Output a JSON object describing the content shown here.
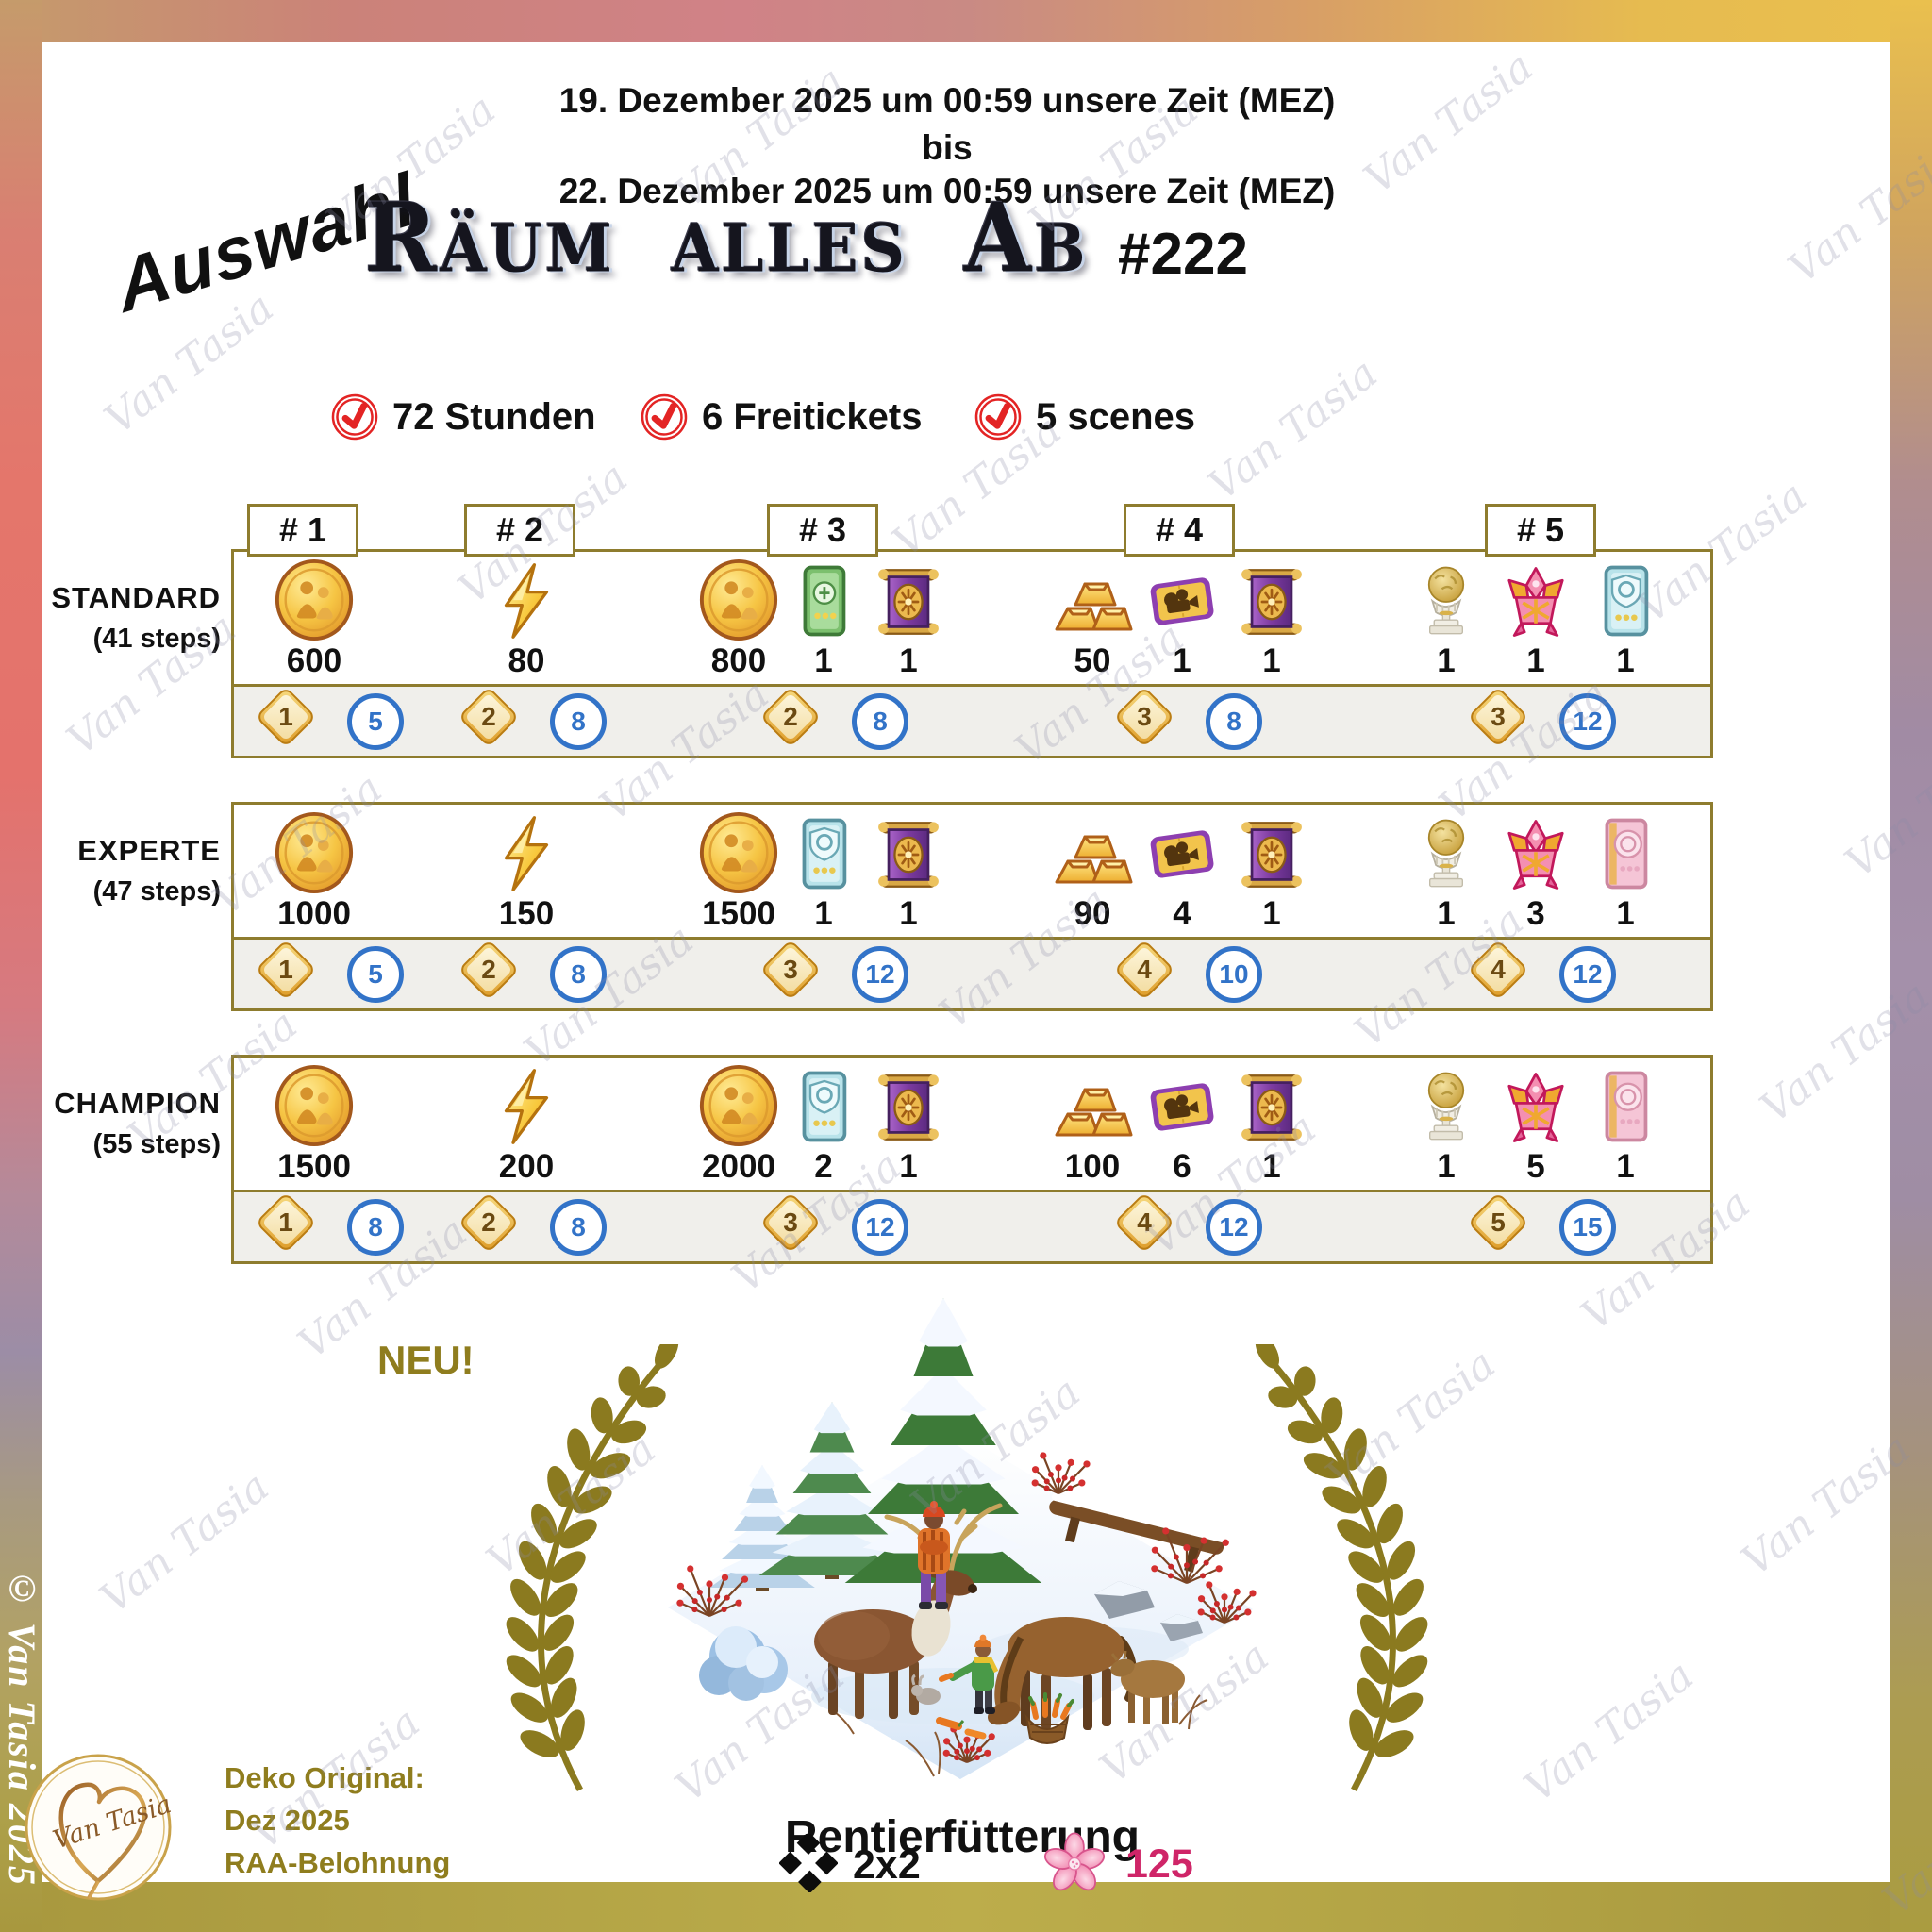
{
  "header": {
    "date_from": "19. Dezember 2025 um 00:59 unsere Zeit (MEZ)",
    "date_connector": "bis",
    "date_to": "22. Dezember 2025 um 00:59 unsere Zeit (MEZ)",
    "selection_label": "Auswahl",
    "title": "Räum alles Ab",
    "event_number": "#222",
    "features": [
      {
        "icon": "red-check-icon",
        "label": "72 Stunden"
      },
      {
        "icon": "red-check-icon",
        "label": "6 Freitickets"
      },
      {
        "icon": "red-check-icon",
        "label": "5 scenes"
      }
    ]
  },
  "milestones": [
    "# 1",
    "# 2",
    "# 3",
    "# 4",
    "# 5"
  ],
  "tiers": [
    {
      "name": "STANDARD",
      "steps": "(41 steps)",
      "rewards": [
        {
          "icon": "coin",
          "qty": "600"
        },
        {
          "icon": "energy",
          "qty": "80"
        },
        {
          "icon": "coin",
          "qty": "800"
        },
        {
          "icon": "green-card",
          "qty": "1"
        },
        {
          "icon": "purple-banner",
          "qty": "1"
        },
        {
          "icon": "gold-bars",
          "qty": "50"
        },
        {
          "icon": "movie-ticket",
          "qty": "1"
        },
        {
          "icon": "purple-banner",
          "qty": "1"
        },
        {
          "icon": "trophy",
          "qty": "1"
        },
        {
          "icon": "pink-ornament",
          "qty": "1"
        },
        {
          "icon": "teal-card",
          "qty": "1"
        }
      ],
      "badges": [
        {
          "scene": "1",
          "count": "5"
        },
        {
          "scene": "2",
          "count": "8"
        },
        {
          "scene": "2",
          "count": "8"
        },
        {
          "scene": "3",
          "count": "8"
        },
        {
          "scene": "3",
          "count": "12"
        }
      ]
    },
    {
      "name": "EXPERTE",
      "steps": "(47 steps)",
      "rewards": [
        {
          "icon": "coin",
          "qty": "1000"
        },
        {
          "icon": "energy",
          "qty": "150"
        },
        {
          "icon": "coin",
          "qty": "1500"
        },
        {
          "icon": "teal-card",
          "qty": "1"
        },
        {
          "icon": "purple-banner",
          "qty": "1"
        },
        {
          "icon": "gold-bars",
          "qty": "90"
        },
        {
          "icon": "movie-ticket",
          "qty": "4"
        },
        {
          "icon": "purple-banner",
          "qty": "1"
        },
        {
          "icon": "trophy",
          "qty": "1"
        },
        {
          "icon": "pink-ornament",
          "qty": "3"
        },
        {
          "icon": "pink-card",
          "qty": "1"
        }
      ],
      "badges": [
        {
          "scene": "1",
          "count": "5"
        },
        {
          "scene": "2",
          "count": "8"
        },
        {
          "scene": "3",
          "count": "12"
        },
        {
          "scene": "4",
          "count": "10"
        },
        {
          "scene": "4",
          "count": "12"
        }
      ]
    },
    {
      "name": "CHAMPION",
      "steps": "(55 steps)",
      "rewards": [
        {
          "icon": "coin",
          "qty": "1500"
        },
        {
          "icon": "energy",
          "qty": "200"
        },
        {
          "icon": "coin",
          "qty": "2000"
        },
        {
          "icon": "teal-card",
          "qty": "2"
        },
        {
          "icon": "purple-banner",
          "qty": "1"
        },
        {
          "icon": "gold-bars",
          "qty": "100"
        },
        {
          "icon": "movie-ticket",
          "qty": "6"
        },
        {
          "icon": "purple-banner",
          "qty": "1"
        },
        {
          "icon": "trophy",
          "qty": "1"
        },
        {
          "icon": "pink-ornament",
          "qty": "5"
        },
        {
          "icon": "pink-card",
          "qty": "1"
        }
      ],
      "badges": [
        {
          "scene": "1",
          "count": "8"
        },
        {
          "scene": "2",
          "count": "8"
        },
        {
          "scene": "3",
          "count": "12"
        },
        {
          "scene": "4",
          "count": "12"
        },
        {
          "scene": "5",
          "count": "15"
        }
      ]
    }
  ],
  "footer": {
    "new_label": "NEU!",
    "deko_lines": [
      "Deko Original:",
      "Dez 2025",
      "RAA-Belohnung"
    ],
    "deco_name": "Rentierfütterung",
    "size_icon": "black-diamonds-icon",
    "size_label": "2x2",
    "flower_icon": "pink-flower-icon",
    "flower_count": "125"
  },
  "branding": {
    "watermark": "Van Tasia",
    "copyright": "© Van Tasia 2025",
    "logo_text": "Van Tasia"
  },
  "colors": {
    "olive_accent": "#8f7d1e",
    "table_border": "#8e7c2e",
    "badge_blue": "#3273c8",
    "check_red": "#e32424",
    "flower_pink": "#cf2568",
    "gold": "#e8b84b"
  }
}
